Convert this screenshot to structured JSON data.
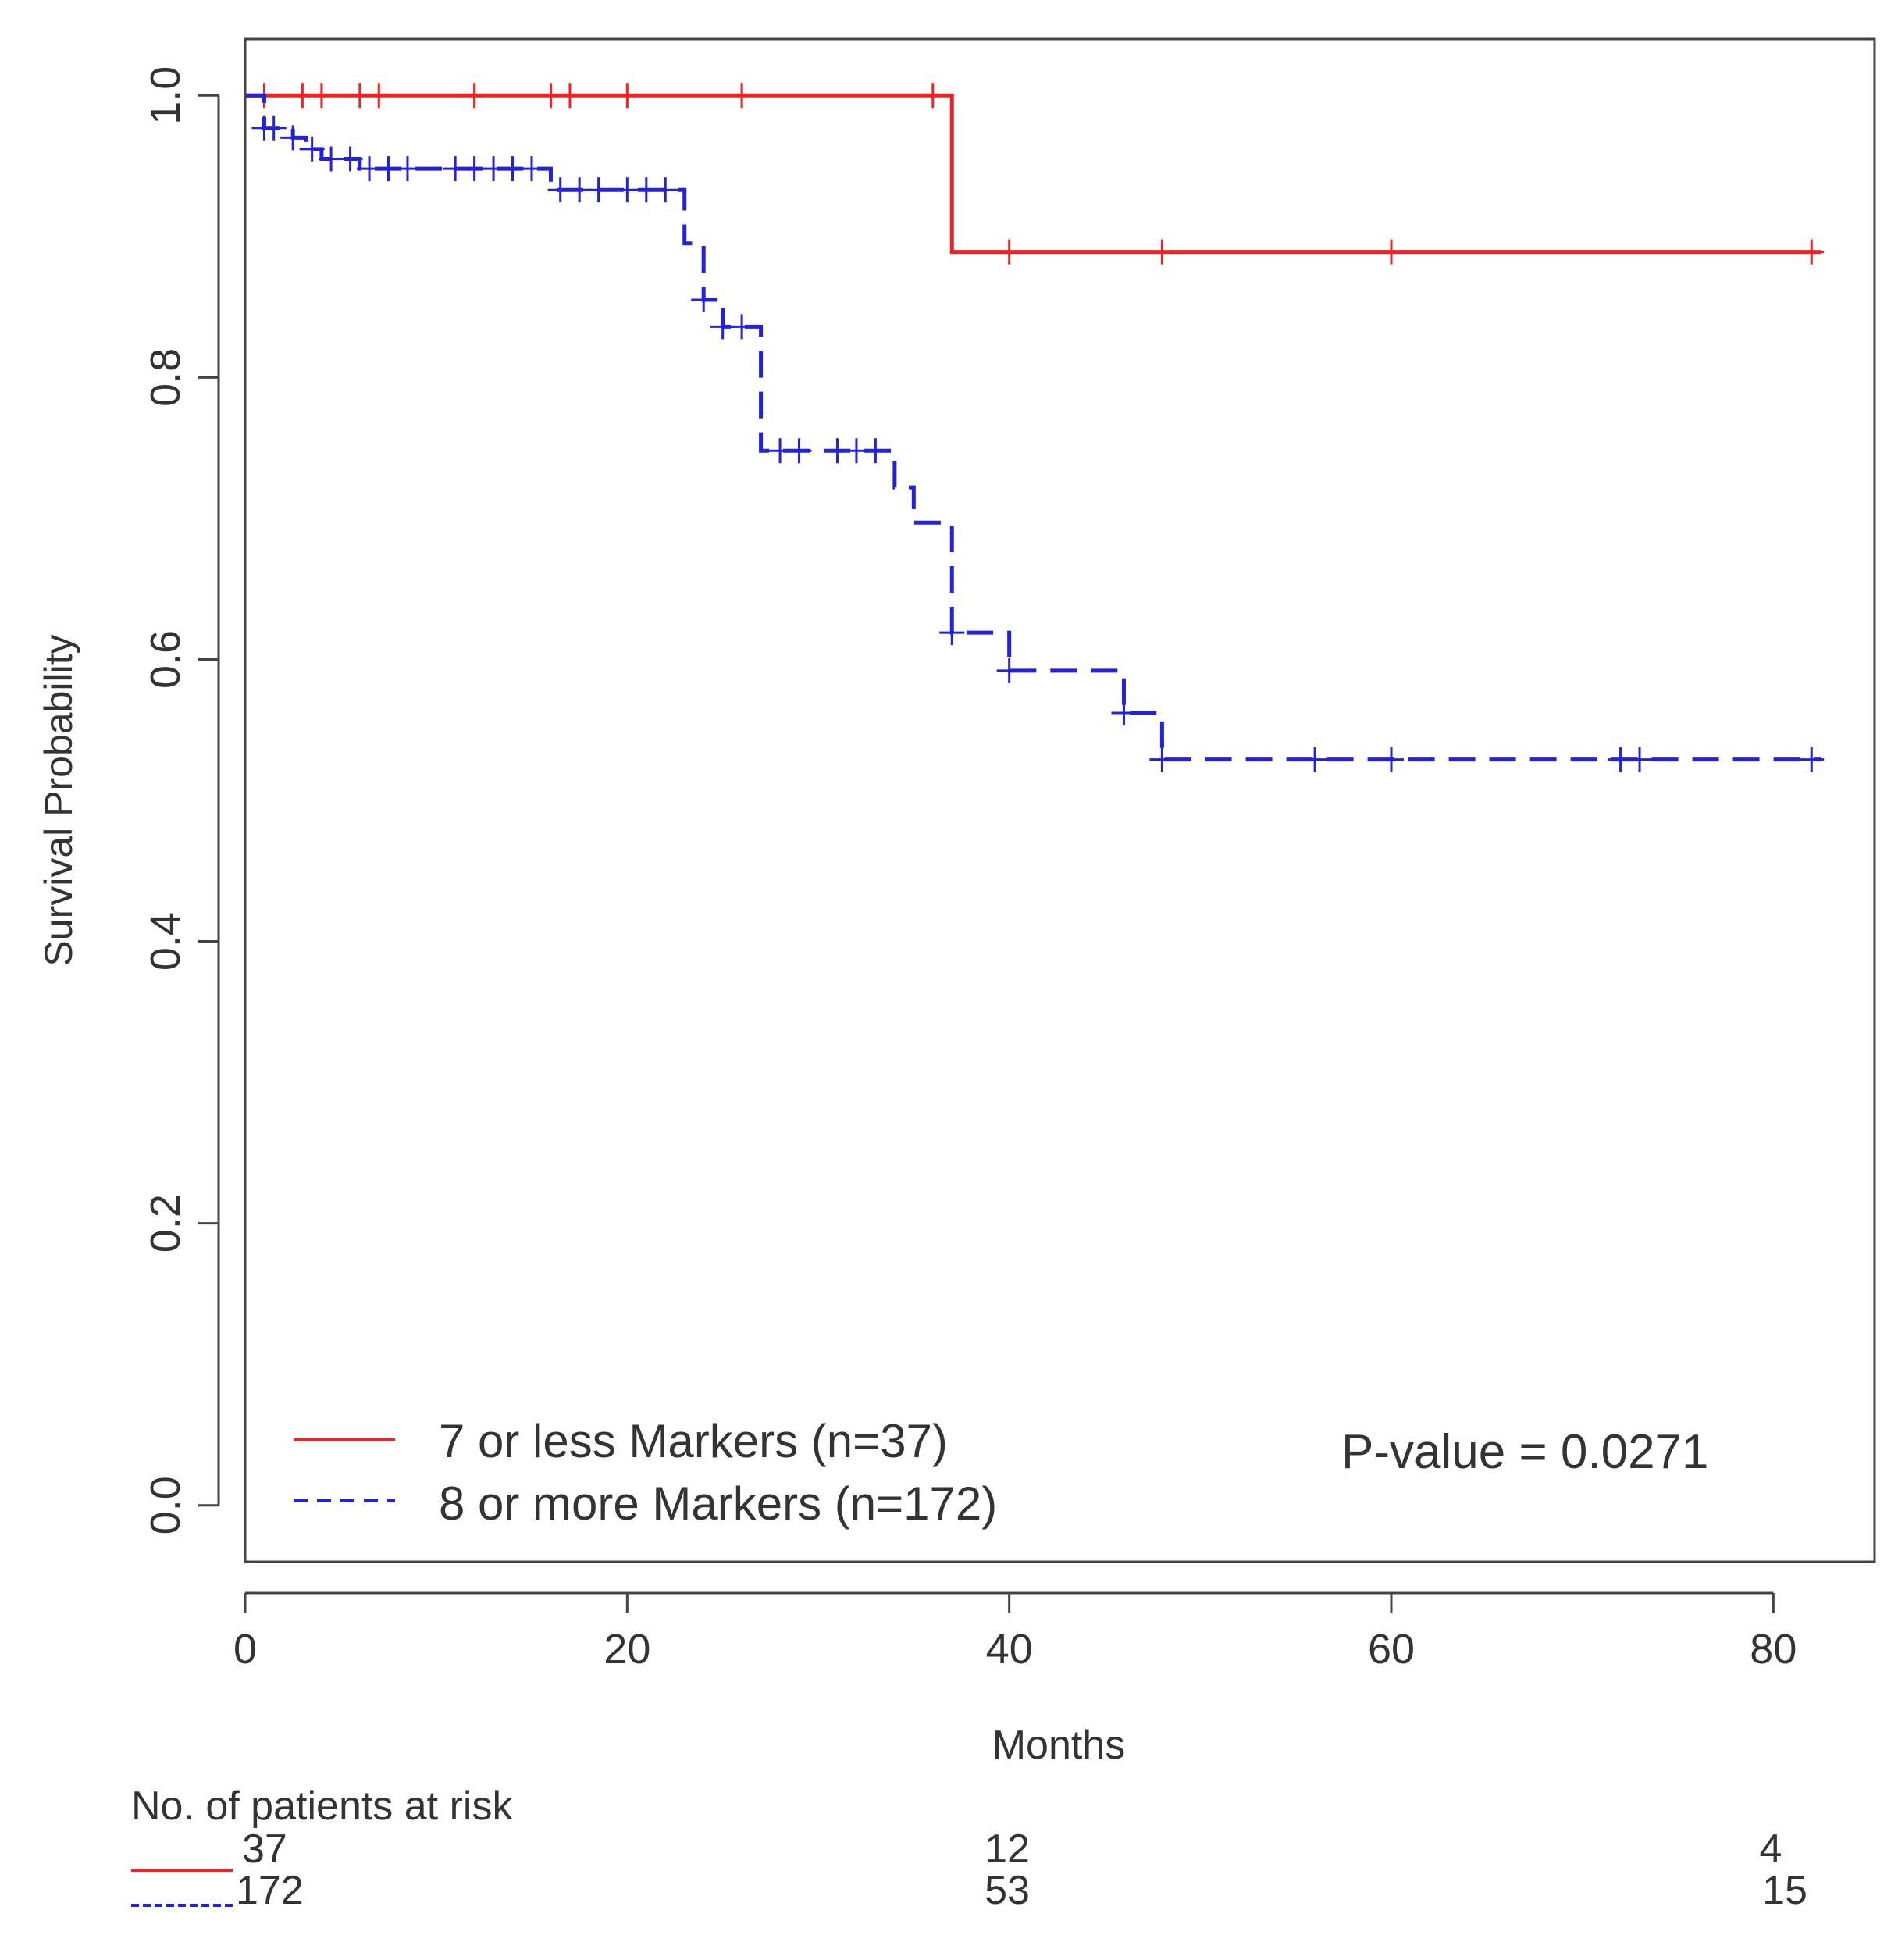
{
  "chart_data": {
    "type": "line",
    "subtype": "kaplan-meier",
    "xlabel": "Months",
    "ylabel": "Survival Probability",
    "xlim": [
      0,
      85.3
    ],
    "ylim": [
      -0.04,
      1.04
    ],
    "x_ticks": [
      0,
      20,
      40,
      60,
      80
    ],
    "x_tick_labels": [
      "0",
      "20",
      "40",
      "60",
      "80"
    ],
    "y_ticks": [
      0.0,
      0.2,
      0.4,
      0.6,
      0.8,
      1.0
    ],
    "y_tick_labels": [
      "0.0",
      "0.2",
      "0.4",
      "0.6",
      "0.8",
      "1.0"
    ],
    "grid": false,
    "legend_position": "bottom-left",
    "annotation": "P-value = 0.0271",
    "series": [
      {
        "name": "7 or less Markers (n=37)",
        "color": "#ee2222",
        "dash": "solid",
        "steps": [
          [
            0,
            1.0
          ],
          [
            37,
            0.889
          ],
          [
            82.5,
            0.889
          ]
        ],
        "censor_x": [
          1,
          3,
          4,
          6,
          7,
          12,
          16,
          17,
          20,
          26,
          36,
          40,
          48,
          60,
          82
        ]
      },
      {
        "name": "8 or more Markers (n=172)",
        "color": "#2222dd",
        "dash": "dashed",
        "steps": [
          [
            0,
            1.0
          ],
          [
            1,
            0.977
          ],
          [
            2.5,
            0.97
          ],
          [
            3.2,
            0.962
          ],
          [
            4,
            0.955
          ],
          [
            6,
            0.948
          ],
          [
            16,
            0.933
          ],
          [
            23,
            0.895
          ],
          [
            24,
            0.855
          ],
          [
            25,
            0.836
          ],
          [
            27,
            0.748
          ],
          [
            34,
            0.722
          ],
          [
            35,
            0.697
          ],
          [
            37,
            0.619
          ],
          [
            40,
            0.592
          ],
          [
            46,
            0.562
          ],
          [
            48,
            0.529
          ],
          [
            82.5,
            0.529
          ]
        ],
        "censor_x": [
          1,
          1.5,
          2.5,
          3.5,
          4.5,
          5.5,
          6.5,
          7.5,
          8.5,
          11,
          12,
          13,
          14,
          15,
          16.5,
          17.5,
          18.5,
          20,
          21,
          22,
          24,
          25,
          26,
          28,
          29,
          31,
          32,
          33,
          37,
          40,
          46,
          48,
          56,
          60,
          72,
          73,
          82
        ]
      }
    ],
    "risk_table": {
      "title": "No. of patients at risk",
      "time_points": [
        0,
        40,
        80
      ],
      "rows": [
        {
          "color": "#ee2222",
          "dash": "solid",
          "values": [
            "37",
            "12",
            "4"
          ]
        },
        {
          "color": "#2222dd",
          "dash": "dashed",
          "values": [
            "172",
            "53",
            "15"
          ]
        }
      ]
    }
  }
}
